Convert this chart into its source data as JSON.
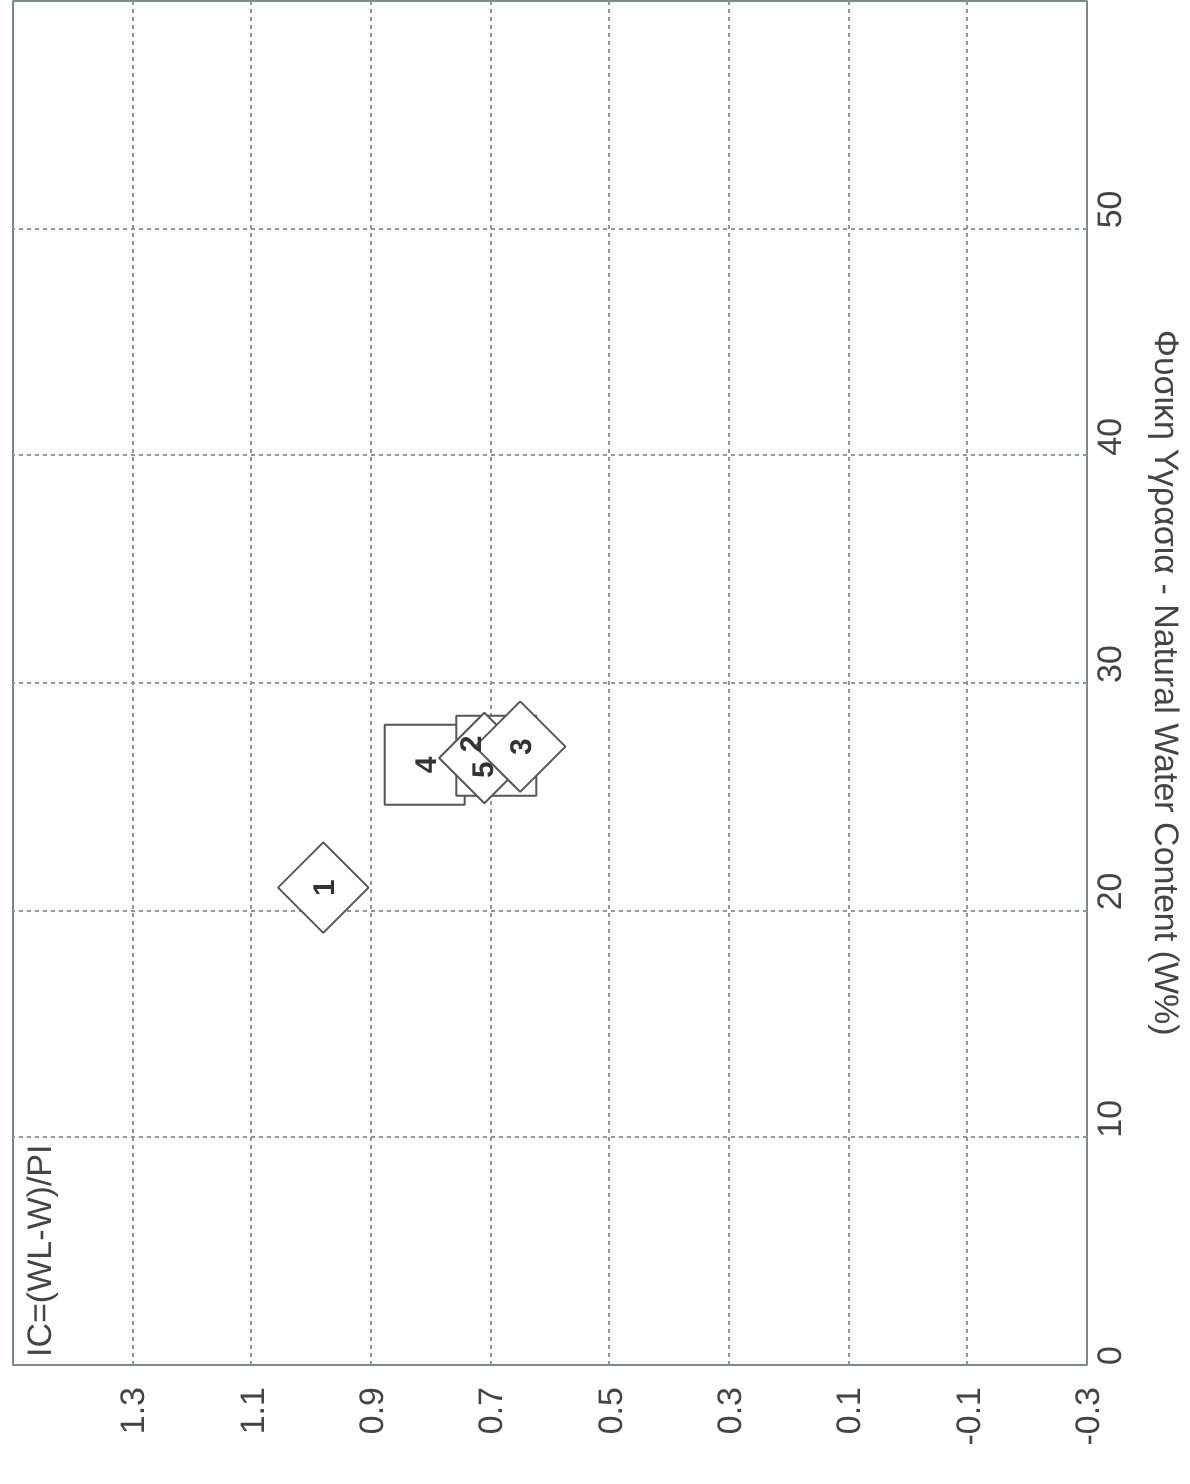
{
  "chart_data": {
    "type": "scatter",
    "ylabel": "Φυσικη Υγρασια - Natural Water Content (W%)",
    "xlim": [
      1.5,
      -0.3
    ],
    "xticks": [
      1.3,
      1.1,
      0.9,
      0.7,
      0.5,
      0.3,
      0.1,
      -0.1,
      -0.3
    ],
    "ylim": [
      0,
      60
    ],
    "yticks": [
      0,
      10,
      20,
      30,
      40,
      50
    ],
    "grid": true,
    "series": [
      {
        "color": "#555555",
        "marker": "diamond",
        "x": [
          0.98,
          0.71,
          0.65
        ],
        "values": [
          21.0,
          26.7,
          27.2
        ]
      },
      {
        "color": "#555555",
        "marker": "square",
        "x": [
          0.81,
          0.69
        ],
        "values": [
          26.4,
          26.8
        ]
      }
    ],
    "annotations": [
      "IC=(WL-W)/PI",
      {
        "text": "1",
        "x": 0.98,
        "y": 21.0
      },
      {
        "text": "2",
        "x": 0.71,
        "y": 26.7
      },
      {
        "text": "3",
        "x": 0.65,
        "y": 27.2
      },
      {
        "text": "4",
        "x": 0.81,
        "y": 26.4
      },
      {
        "text": "5",
        "x": 0.69,
        "y": 26.8
      }
    ]
  }
}
